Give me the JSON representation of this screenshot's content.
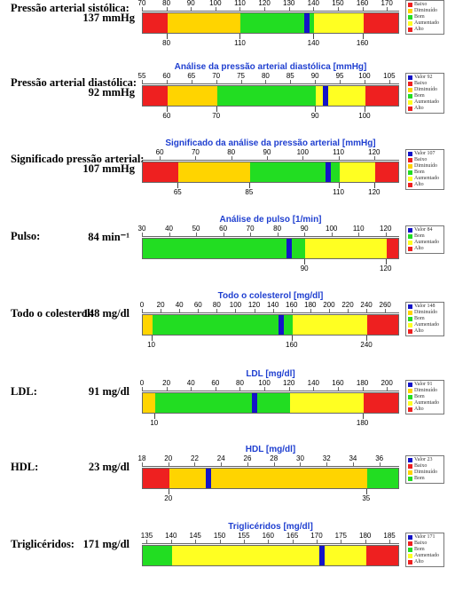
{
  "colors": {
    "Baixo": "#ee2020",
    "Diminuído": "#ffd400",
    "Bom": "#22dd22",
    "Aumentado": "#ffff22",
    "Alto": "#ee2020",
    "marker": "#1414c8"
  },
  "sections": [
    {
      "name": "Pressão arterial sistólica:",
      "value": "137 mmHg",
      "title": "",
      "min": 70,
      "max": 175,
      "marker": 137,
      "ticks": [
        70,
        80,
        90,
        100,
        110,
        120,
        130,
        140,
        150,
        160,
        170
      ],
      "segments": [
        {
          "from": 70,
          "to": 80,
          "zone": "Baixo"
        },
        {
          "from": 80,
          "to": 110,
          "zone": "Diminuído"
        },
        {
          "from": 110,
          "to": 140,
          "zone": "Bom"
        },
        {
          "from": 140,
          "to": 160,
          "zone": "Aumentado"
        },
        {
          "from": 160,
          "to": 175,
          "zone": "Alto"
        }
      ],
      "thresholds": [
        80,
        110,
        140,
        160
      ],
      "legend": [
        "Baixo",
        "Diminuído",
        "Bom",
        "Aumentado",
        "Alto"
      ],
      "legend_value": ""
    },
    {
      "name": "Pressão arterial diastólica:",
      "value": "92 mmHg",
      "title": "Análise da pressão arterial diastólica [mmHg]",
      "min": 55,
      "max": 107,
      "marker": 92,
      "ticks": [
        55,
        60,
        65,
        70,
        75,
        80,
        85,
        90,
        95,
        100,
        105
      ],
      "segments": [
        {
          "from": 55,
          "to": 60,
          "zone": "Baixo"
        },
        {
          "from": 60,
          "to": 70,
          "zone": "Diminuído"
        },
        {
          "from": 70,
          "to": 90,
          "zone": "Bom"
        },
        {
          "from": 90,
          "to": 100,
          "zone": "Aumentado"
        },
        {
          "from": 100,
          "to": 107,
          "zone": "Alto"
        }
      ],
      "thresholds": [
        60,
        70,
        90,
        100
      ],
      "legend": [
        "Baixo",
        "Diminuído",
        "Bom",
        "Aumentado",
        "Alto"
      ],
      "legend_value": "Valor 92"
    },
    {
      "name": "Significado pressão arterial:",
      "value": "107 mmHg",
      "title": "Significado da análise da pressão arterial [mmHg]",
      "min": 55,
      "max": 127,
      "marker": 107,
      "ticks": [
        60,
        70,
        80,
        90,
        100,
        110,
        120
      ],
      "segments": [
        {
          "from": 55,
          "to": 65,
          "zone": "Baixo"
        },
        {
          "from": 65,
          "to": 85,
          "zone": "Diminuído"
        },
        {
          "from": 85,
          "to": 110,
          "zone": "Bom"
        },
        {
          "from": 110,
          "to": 120,
          "zone": "Aumentado"
        },
        {
          "from": 120,
          "to": 127,
          "zone": "Alto"
        }
      ],
      "thresholds": [
        65,
        85,
        110,
        120
      ],
      "legend": [
        "Baixo",
        "Diminuído",
        "Bom",
        "Aumentado",
        "Alto"
      ],
      "legend_value": "Valor 107"
    },
    {
      "name": "Pulso:",
      "value": "84 min⁻¹",
      "title": "Análise de pulso [1/min]",
      "min": 30,
      "max": 125,
      "marker": 84,
      "ticks": [
        30,
        40,
        50,
        60,
        70,
        80,
        90,
        100,
        110,
        120
      ],
      "segments": [
        {
          "from": 30,
          "to": 90,
          "zone": "Bom"
        },
        {
          "from": 90,
          "to": 120,
          "zone": "Aumentado"
        },
        {
          "from": 120,
          "to": 125,
          "zone": "Alto"
        }
      ],
      "thresholds": [
        90,
        120
      ],
      "legend": [
        "Bom",
        "Aumentado",
        "Alto"
      ],
      "legend_value": "Valor 84"
    },
    {
      "name": "Todo o colesterol:",
      "value": "148 mg/dl",
      "title": "Todo o colesterol [mg/dl]",
      "min": 0,
      "max": 275,
      "marker": 148,
      "ticks": [
        0,
        20,
        40,
        60,
        80,
        100,
        120,
        140,
        160,
        180,
        200,
        220,
        240,
        260
      ],
      "segments": [
        {
          "from": 0,
          "to": 10,
          "zone": "Diminuído"
        },
        {
          "from": 10,
          "to": 160,
          "zone": "Bom"
        },
        {
          "from": 160,
          "to": 240,
          "zone": "Aumentado"
        },
        {
          "from": 240,
          "to": 275,
          "zone": "Alto"
        }
      ],
      "thresholds": [
        10,
        160,
        240
      ],
      "legend": [
        "Diminuído",
        "Bom",
        "Aumentado",
        "Alto"
      ],
      "legend_value": "Valor 148"
    },
    {
      "name": "LDL:",
      "value": "91 mg/dl",
      "title": "LDL [mg/dl]",
      "min": 0,
      "max": 210,
      "marker": 91,
      "ticks": [
        0,
        20,
        40,
        60,
        80,
        100,
        120,
        140,
        160,
        180,
        200
      ],
      "segments": [
        {
          "from": 0,
          "to": 10,
          "zone": "Diminuído"
        },
        {
          "from": 10,
          "to": 120,
          "zone": "Bom"
        },
        {
          "from": 120,
          "to": 180,
          "zone": "Aumentado"
        },
        {
          "from": 180,
          "to": 210,
          "zone": "Alto"
        }
      ],
      "thresholds": [
        10,
        180
      ],
      "legend": [
        "Diminuído",
        "Bom",
        "Aumentado",
        "Alto"
      ],
      "legend_value": "Valor 91"
    },
    {
      "name": "HDL:",
      "value": "23 mg/dl",
      "title": "HDL [mg/dl]",
      "min": 18,
      "max": 37.5,
      "marker": 23,
      "ticks": [
        18,
        20,
        22,
        24,
        26,
        28,
        30,
        32,
        34,
        36
      ],
      "segments": [
        {
          "from": 18,
          "to": 20,
          "zone": "Baixo"
        },
        {
          "from": 20,
          "to": 35,
          "zone": "Diminuído"
        },
        {
          "from": 35,
          "to": 37.5,
          "zone": "Bom"
        }
      ],
      "thresholds": [
        20,
        35
      ],
      "legend": [
        "Baixo",
        "Diminuído",
        "Bom"
      ],
      "legend_value": "Valor 23"
    },
    {
      "name": "Triglicéridos:",
      "value": "171 mg/dl",
      "title": "Triglicéridos [mg/dl]",
      "min": 134,
      "max": 187,
      "marker": 171,
      "ticks": [
        135,
        140,
        145,
        150,
        155,
        160,
        165,
        170,
        175,
        180,
        185
      ],
      "segments": [
        {
          "from": 134,
          "to": 140,
          "zone": "Bom"
        },
        {
          "from": 140,
          "to": 180,
          "zone": "Aumentado"
        },
        {
          "from": 180,
          "to": 187,
          "zone": "Alto"
        }
      ],
      "thresholds": [],
      "legend": [
        "Baixo",
        "Bom",
        "Aumentado",
        "Alto"
      ],
      "legend_value": "Valor 171"
    }
  ]
}
